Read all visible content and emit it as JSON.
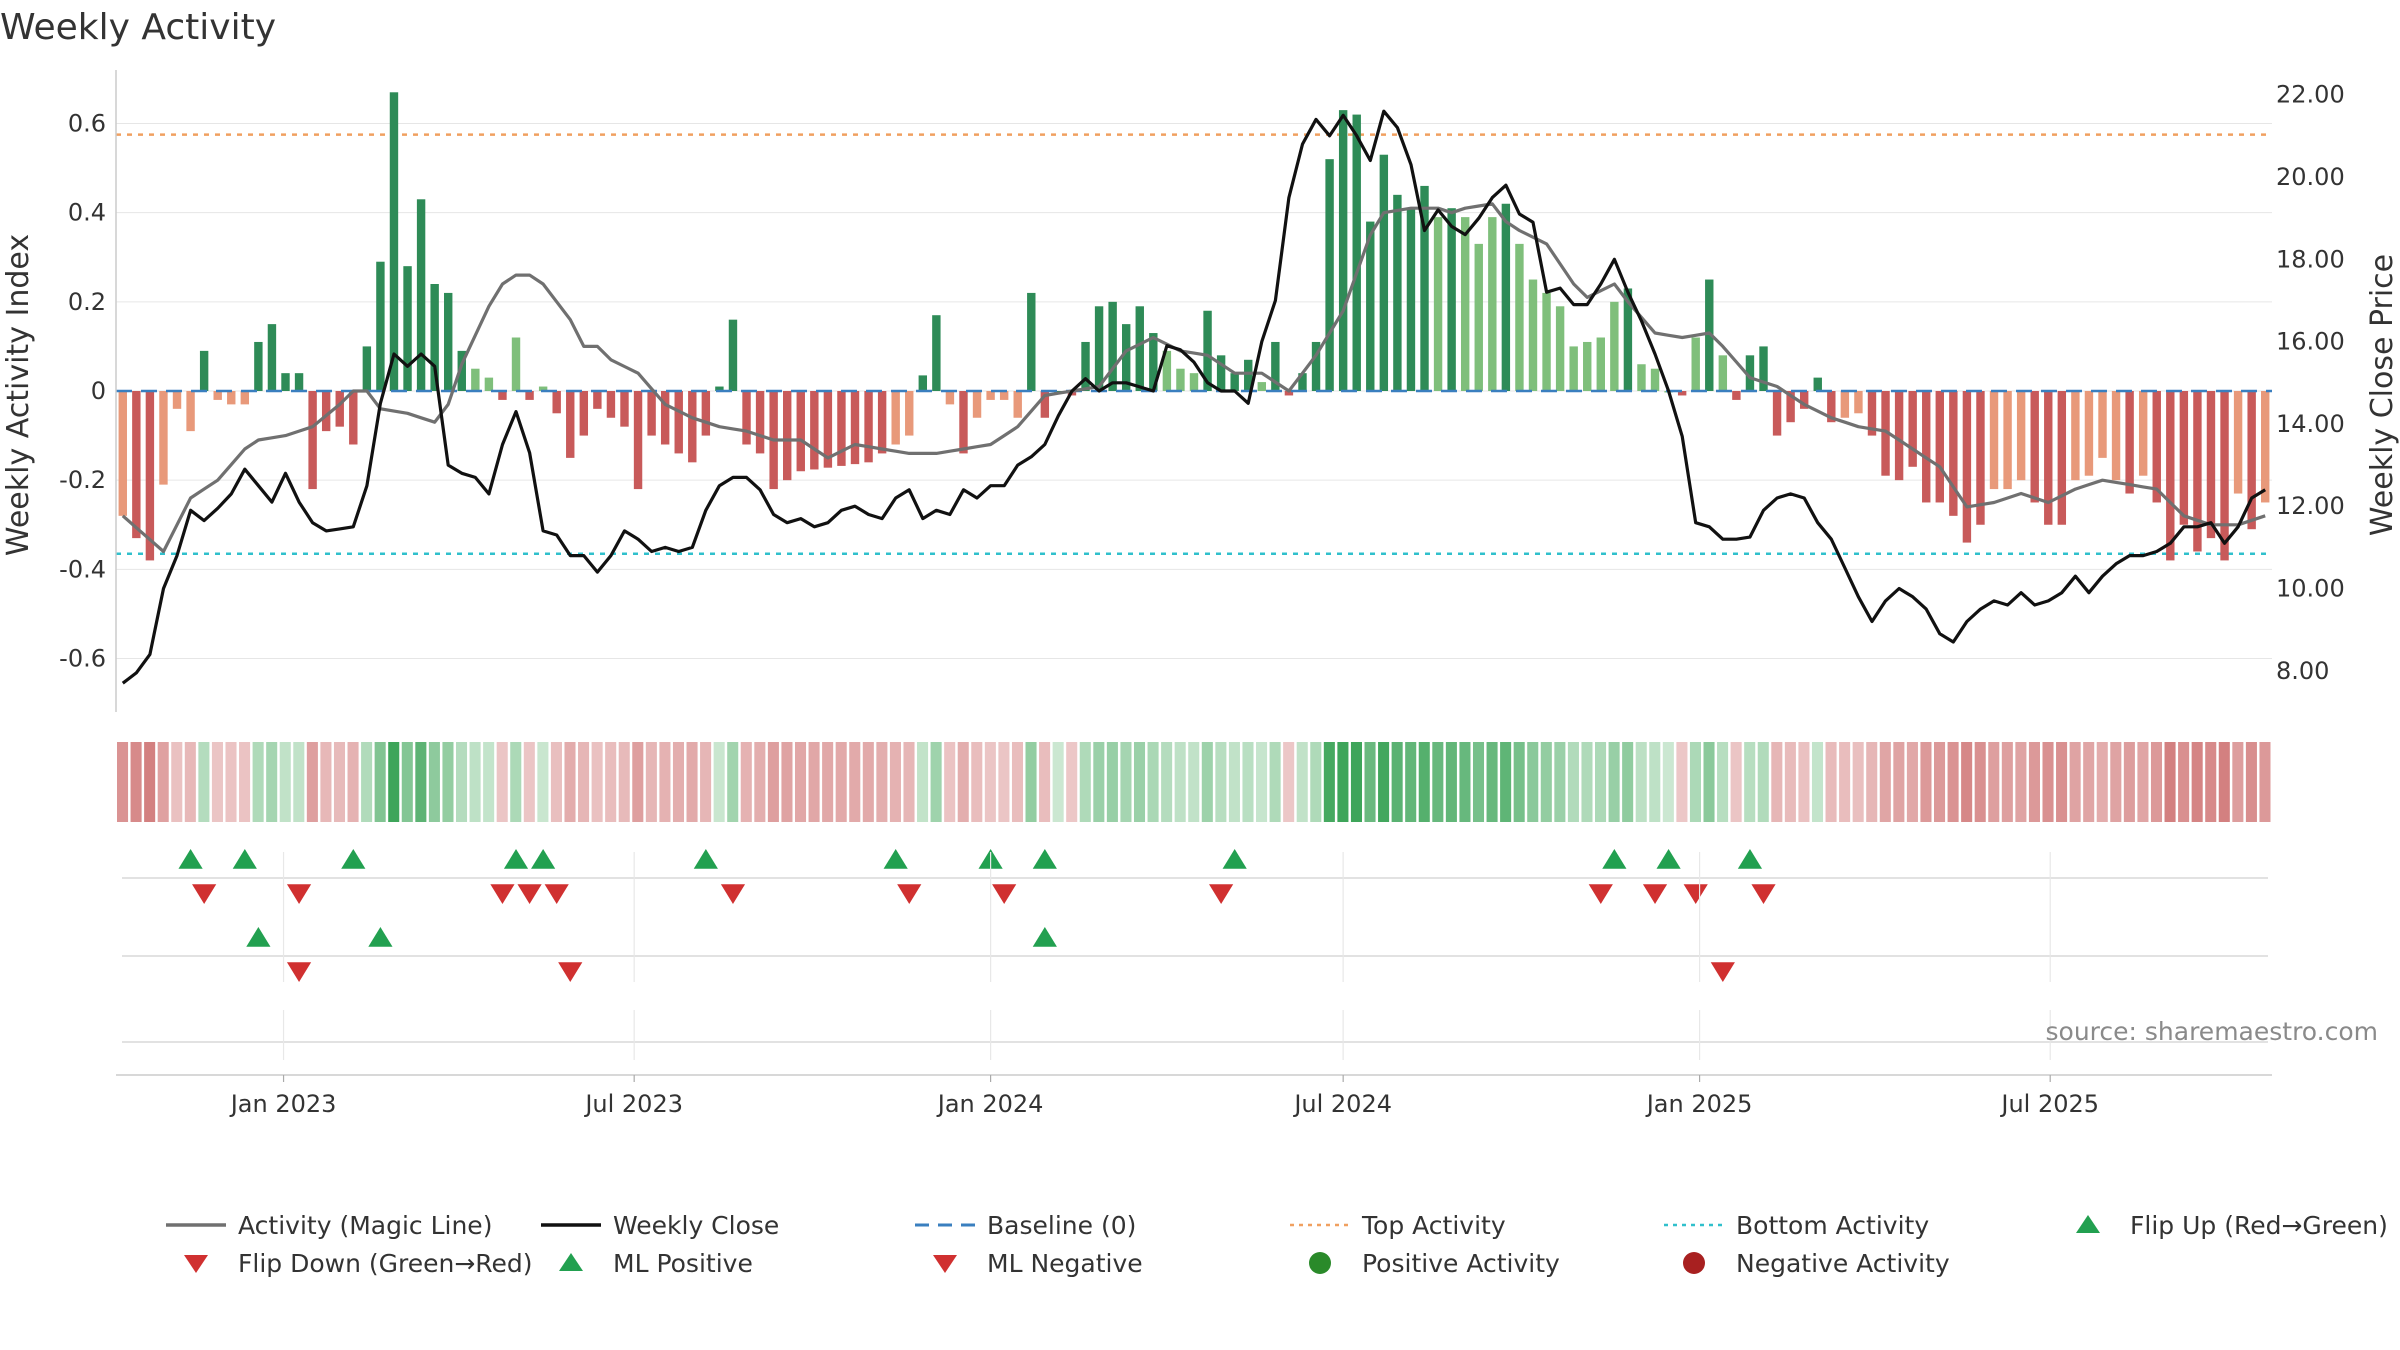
{
  "chart_data": {
    "type": "bar",
    "title": "Weekly Activity",
    "ylabel": "Weekly Activity Index",
    "ylabel_right": "Weekly Close Price",
    "ylim": [
      -0.72,
      0.72
    ],
    "ylim_right": [
      7.0,
      22.6
    ],
    "yticks": [
      "-0.6",
      "-0.4",
      "-0.2",
      "0",
      "0.2",
      "0.4",
      "0.6"
    ],
    "yticks_right": [
      "8.00",
      "10.00",
      "12.00",
      "14.00",
      "16.00",
      "18.00",
      "20.00",
      "22.00"
    ],
    "xticks": [
      "Jan 2023",
      "Jul 2023",
      "Jan 2024",
      "Jul 2024",
      "Jan 2025",
      "Jul 2025"
    ],
    "x_start": "2022-10-10",
    "top_activity": 0.575,
    "bottom_activity": -0.365,
    "weeks_count": 159,
    "activity_anchors": [
      [
        0,
        -0.28
      ],
      [
        2,
        -0.38
      ],
      [
        4,
        -0.04
      ],
      [
        5,
        -0.09
      ],
      [
        6,
        0.09
      ],
      [
        7,
        -0.02
      ],
      [
        8,
        -0.03
      ],
      [
        9,
        -0.03
      ],
      [
        10,
        0.11
      ],
      [
        11,
        0.15
      ],
      [
        12,
        0.04
      ],
      [
        13,
        0.04
      ],
      [
        14,
        -0.22
      ],
      [
        15,
        -0.09
      ],
      [
        16,
        -0.08
      ],
      [
        17,
        -0.12
      ],
      [
        18,
        0.1
      ],
      [
        19,
        0.29
      ],
      [
        20,
        0.67
      ],
      [
        21,
        0.28
      ],
      [
        22,
        0.43
      ],
      [
        23,
        0.24
      ],
      [
        24,
        0.22
      ],
      [
        25,
        0.09
      ],
      [
        26,
        0.05
      ],
      [
        27,
        0.03
      ],
      [
        28,
        -0.02
      ],
      [
        29,
        0.12
      ],
      [
        30,
        -0.02
      ],
      [
        31,
        0.01
      ],
      [
        32,
        -0.05
      ],
      [
        33,
        -0.15
      ],
      [
        34,
        -0.1
      ],
      [
        35,
        -0.04
      ],
      [
        36,
        -0.06
      ],
      [
        37,
        -0.08
      ],
      [
        38,
        -0.22
      ],
      [
        39,
        -0.1
      ],
      [
        40,
        -0.12
      ],
      [
        41,
        -0.14
      ],
      [
        42,
        -0.16
      ],
      [
        43,
        -0.1
      ],
      [
        44,
        0.01
      ],
      [
        45,
        0.16
      ],
      [
        46,
        -0.12
      ],
      [
        47,
        -0.14
      ],
      [
        48,
        -0.22
      ],
      [
        49,
        -0.2
      ],
      [
        50,
        -0.18
      ],
      [
        55,
        -0.16
      ],
      [
        58,
        -0.1
      ],
      [
        60,
        0.17
      ],
      [
        61,
        -0.03
      ],
      [
        62,
        -0.14
      ],
      [
        63,
        -0.06
      ],
      [
        64,
        -0.02
      ],
      [
        65,
        -0.02
      ],
      [
        66,
        -0.06
      ],
      [
        67,
        0.22
      ],
      [
        68,
        -0.06
      ],
      [
        69,
        0.0
      ],
      [
        70,
        -0.01
      ],
      [
        71,
        0.11
      ],
      [
        72,
        0.19
      ],
      [
        73,
        0.2
      ],
      [
        74,
        0.15
      ],
      [
        75,
        0.19
      ],
      [
        76,
        0.13
      ],
      [
        77,
        0.09
      ],
      [
        78,
        0.05
      ],
      [
        79,
        0.04
      ],
      [
        80,
        0.18
      ],
      [
        81,
        0.08
      ],
      [
        82,
        0.04
      ],
      [
        83,
        0.07
      ],
      [
        84,
        0.02
      ],
      [
        85,
        0.11
      ],
      [
        86,
        -0.01
      ],
      [
        87,
        0.04
      ],
      [
        88,
        0.11
      ],
      [
        89,
        0.52
      ],
      [
        90,
        0.63
      ],
      [
        91,
        0.62
      ],
      [
        92,
        0.38
      ],
      [
        93,
        0.53
      ],
      [
        94,
        0.44
      ],
      [
        95,
        0.41
      ],
      [
        96,
        0.46
      ],
      [
        97,
        0.39
      ],
      [
        98,
        0.41
      ],
      [
        99,
        0.39
      ],
      [
        100,
        0.33
      ],
      [
        101,
        0.39
      ],
      [
        102,
        0.42
      ],
      [
        103,
        0.33
      ],
      [
        104,
        0.25
      ],
      [
        105,
        0.22
      ],
      [
        106,
        0.19
      ],
      [
        107,
        0.1
      ],
      [
        108,
        0.11
      ],
      [
        109,
        0.12
      ],
      [
        110,
        0.2
      ],
      [
        111,
        0.23
      ],
      [
        112,
        0.06
      ],
      [
        113,
        0.05
      ],
      [
        114,
        0.0
      ],
      [
        115,
        -0.01
      ],
      [
        116,
        0.12
      ],
      [
        117,
        0.25
      ],
      [
        118,
        0.08
      ],
      [
        119,
        -0.02
      ],
      [
        120,
        0.08
      ],
      [
        121,
        0.1
      ],
      [
        122,
        -0.1
      ],
      [
        124,
        -0.04
      ],
      [
        125,
        0.03
      ],
      [
        126,
        -0.07
      ],
      [
        128,
        -0.05
      ],
      [
        129,
        -0.1
      ],
      [
        130,
        -0.19
      ],
      [
        131,
        -0.2
      ],
      [
        132,
        -0.17
      ],
      [
        133,
        -0.25
      ],
      [
        134,
        -0.25
      ],
      [
        135,
        -0.28
      ],
      [
        136,
        -0.34
      ],
      [
        137,
        -0.3
      ],
      [
        138,
        -0.22
      ],
      [
        139,
        -0.22
      ],
      [
        140,
        -0.2
      ],
      [
        141,
        -0.25
      ],
      [
        142,
        -0.3
      ],
      [
        143,
        -0.3
      ],
      [
        144,
        -0.2
      ],
      [
        145,
        -0.19
      ],
      [
        146,
        -0.15
      ],
      [
        147,
        -0.2
      ],
      [
        148,
        -0.23
      ],
      [
        149,
        -0.19
      ],
      [
        150,
        -0.25
      ],
      [
        151,
        -0.38
      ],
      [
        152,
        -0.3
      ],
      [
        153,
        -0.36
      ],
      [
        154,
        -0.33
      ],
      [
        155,
        -0.38
      ],
      [
        156,
        -0.23
      ],
      [
        157,
        -0.31
      ],
      [
        158,
        -0.25
      ]
    ],
    "magic_anchors": [
      [
        0,
        -0.28
      ],
      [
        3,
        -0.36
      ],
      [
        5,
        -0.24
      ],
      [
        7,
        -0.2
      ],
      [
        9,
        -0.13
      ],
      [
        10,
        -0.11
      ],
      [
        12,
        -0.1
      ],
      [
        14,
        -0.08
      ],
      [
        16,
        -0.03
      ],
      [
        17,
        0.0
      ],
      [
        18,
        0.0
      ],
      [
        19,
        -0.04
      ],
      [
        21,
        -0.05
      ],
      [
        22,
        -0.06
      ],
      [
        23,
        -0.07
      ],
      [
        24,
        -0.03
      ],
      [
        25,
        0.06
      ],
      [
        27,
        0.19
      ],
      [
        28,
        0.24
      ],
      [
        29,
        0.26
      ],
      [
        30,
        0.26
      ],
      [
        31,
        0.24
      ],
      [
        33,
        0.16
      ],
      [
        34,
        0.1
      ],
      [
        35,
        0.1
      ],
      [
        36,
        0.07
      ],
      [
        38,
        0.04
      ],
      [
        40,
        -0.03
      ],
      [
        42,
        -0.06
      ],
      [
        44,
        -0.08
      ],
      [
        46,
        -0.09
      ],
      [
        48,
        -0.11
      ],
      [
        50,
        -0.11
      ],
      [
        52,
        -0.15
      ],
      [
        54,
        -0.12
      ],
      [
        56,
        -0.13
      ],
      [
        58,
        -0.14
      ],
      [
        60,
        -0.14
      ],
      [
        62,
        -0.13
      ],
      [
        64,
        -0.12
      ],
      [
        66,
        -0.08
      ],
      [
        68,
        -0.01
      ],
      [
        70,
        0.0
      ],
      [
        72,
        0.01
      ],
      [
        74,
        0.09
      ],
      [
        76,
        0.12
      ],
      [
        78,
        0.09
      ],
      [
        80,
        0.08
      ],
      [
        82,
        0.04
      ],
      [
        84,
        0.04
      ],
      [
        86,
        0.0
      ],
      [
        88,
        0.08
      ],
      [
        90,
        0.18
      ],
      [
        92,
        0.35
      ],
      [
        93,
        0.4
      ],
      [
        95,
        0.41
      ],
      [
        97,
        0.41
      ],
      [
        98,
        0.4
      ],
      [
        99,
        0.41
      ],
      [
        101,
        0.42
      ],
      [
        102,
        0.38
      ],
      [
        103,
        0.36
      ],
      [
        105,
        0.33
      ],
      [
        107,
        0.24
      ],
      [
        108,
        0.21
      ],
      [
        110,
        0.24
      ],
      [
        111,
        0.2
      ],
      [
        113,
        0.13
      ],
      [
        115,
        0.12
      ],
      [
        117,
        0.13
      ],
      [
        118,
        0.1
      ],
      [
        120,
        0.03
      ],
      [
        122,
        0.01
      ],
      [
        124,
        -0.03
      ],
      [
        126,
        -0.06
      ],
      [
        128,
        -0.08
      ],
      [
        130,
        -0.09
      ],
      [
        132,
        -0.13
      ],
      [
        134,
        -0.17
      ],
      [
        136,
        -0.26
      ],
      [
        138,
        -0.25
      ],
      [
        140,
        -0.23
      ],
      [
        142,
        -0.25
      ],
      [
        144,
        -0.22
      ],
      [
        146,
        -0.2
      ],
      [
        148,
        -0.21
      ],
      [
        150,
        -0.22
      ],
      [
        152,
        -0.28
      ],
      [
        154,
        -0.3
      ],
      [
        156,
        -0.3
      ],
      [
        158,
        -0.28
      ]
    ],
    "close_anchors": [
      [
        0,
        7.7
      ],
      [
        1,
        7.95
      ],
      [
        2,
        8.4
      ],
      [
        3,
        10.0
      ],
      [
        4,
        10.8
      ],
      [
        5,
        11.9
      ],
      [
        6,
        11.65
      ],
      [
        7,
        11.95
      ],
      [
        8,
        12.3
      ],
      [
        9,
        12.9
      ],
      [
        10,
        12.5
      ],
      [
        11,
        12.1
      ],
      [
        12,
        12.8
      ],
      [
        13,
        12.1
      ],
      [
        14,
        11.6
      ],
      [
        15,
        11.4
      ],
      [
        16,
        11.45
      ],
      [
        17,
        11.5
      ],
      [
        18,
        12.5
      ],
      [
        19,
        14.5
      ],
      [
        20,
        15.7
      ],
      [
        21,
        15.4
      ],
      [
        22,
        15.7
      ],
      [
        23,
        15.4
      ],
      [
        24,
        13.0
      ],
      [
        25,
        12.8
      ],
      [
        26,
        12.7
      ],
      [
        27,
        12.3
      ],
      [
        28,
        13.5
      ],
      [
        29,
        14.3
      ],
      [
        30,
        13.3
      ],
      [
        31,
        11.4
      ],
      [
        32,
        11.3
      ],
      [
        33,
        10.8
      ],
      [
        34,
        10.8
      ],
      [
        35,
        10.4
      ],
      [
        36,
        10.8
      ],
      [
        37,
        11.4
      ],
      [
        38,
        11.2
      ],
      [
        39,
        10.9
      ],
      [
        40,
        11.0
      ],
      [
        41,
        10.9
      ],
      [
        42,
        11.0
      ],
      [
        43,
        11.9
      ],
      [
        44,
        12.5
      ],
      [
        45,
        12.7
      ],
      [
        46,
        12.7
      ],
      [
        47,
        12.4
      ],
      [
        48,
        11.8
      ],
      [
        49,
        11.6
      ],
      [
        50,
        11.7
      ],
      [
        51,
        11.5
      ],
      [
        52,
        11.6
      ],
      [
        53,
        11.9
      ],
      [
        54,
        12.0
      ],
      [
        55,
        11.8
      ],
      [
        56,
        11.7
      ],
      [
        57,
        12.2
      ],
      [
        58,
        12.4
      ],
      [
        59,
        11.7
      ],
      [
        60,
        11.9
      ],
      [
        61,
        11.8
      ],
      [
        62,
        12.4
      ],
      [
        63,
        12.2
      ],
      [
        64,
        12.5
      ],
      [
        65,
        12.5
      ],
      [
        66,
        13.0
      ],
      [
        67,
        13.2
      ],
      [
        68,
        13.5
      ],
      [
        69,
        14.2
      ],
      [
        70,
        14.8
      ],
      [
        71,
        15.1
      ],
      [
        72,
        14.8
      ],
      [
        73,
        15.0
      ],
      [
        74,
        15.0
      ],
      [
        75,
        14.9
      ],
      [
        76,
        14.8
      ],
      [
        77,
        15.9
      ],
      [
        78,
        15.8
      ],
      [
        79,
        15.5
      ],
      [
        80,
        15.0
      ],
      [
        81,
        14.8
      ],
      [
        82,
        14.8
      ],
      [
        83,
        14.5
      ],
      [
        84,
        16.0
      ],
      [
        85,
        17.0
      ],
      [
        86,
        19.5
      ],
      [
        87,
        20.8
      ],
      [
        88,
        21.4
      ],
      [
        89,
        21.0
      ],
      [
        90,
        21.5
      ],
      [
        91,
        21.0
      ],
      [
        92,
        20.4
      ],
      [
        93,
        21.6
      ],
      [
        94,
        21.2
      ],
      [
        95,
        20.3
      ],
      [
        96,
        18.7
      ],
      [
        97,
        19.2
      ],
      [
        98,
        18.8
      ],
      [
        99,
        18.6
      ],
      [
        100,
        19.0
      ],
      [
        101,
        19.5
      ],
      [
        102,
        19.8
      ],
      [
        103,
        19.1
      ],
      [
        104,
        18.9
      ],
      [
        105,
        17.2
      ],
      [
        106,
        17.3
      ],
      [
        107,
        16.9
      ],
      [
        108,
        16.9
      ],
      [
        109,
        17.4
      ],
      [
        110,
        18.0
      ],
      [
        111,
        17.2
      ],
      [
        112,
        16.5
      ],
      [
        113,
        15.7
      ],
      [
        114,
        14.8
      ],
      [
        115,
        13.7
      ],
      [
        116,
        11.6
      ],
      [
        117,
        11.5
      ],
      [
        118,
        11.2
      ],
      [
        119,
        11.2
      ],
      [
        120,
        11.25
      ],
      [
        121,
        11.9
      ],
      [
        122,
        12.2
      ],
      [
        123,
        12.3
      ],
      [
        124,
        12.2
      ],
      [
        125,
        11.6
      ],
      [
        126,
        11.2
      ],
      [
        127,
        10.5
      ],
      [
        128,
        9.8
      ],
      [
        129,
        9.2
      ],
      [
        130,
        9.7
      ],
      [
        131,
        10.0
      ],
      [
        132,
        9.8
      ],
      [
        133,
        9.5
      ],
      [
        134,
        8.9
      ],
      [
        135,
        8.7
      ],
      [
        136,
        9.2
      ],
      [
        137,
        9.5
      ],
      [
        138,
        9.7
      ],
      [
        139,
        9.6
      ],
      [
        140,
        9.9
      ],
      [
        141,
        9.6
      ],
      [
        142,
        9.7
      ],
      [
        143,
        9.9
      ],
      [
        144,
        10.3
      ],
      [
        145,
        9.9
      ],
      [
        146,
        10.3
      ],
      [
        147,
        10.6
      ],
      [
        148,
        10.8
      ],
      [
        149,
        10.8
      ],
      [
        150,
        10.9
      ],
      [
        151,
        11.1
      ],
      [
        152,
        11.5
      ],
      [
        153,
        11.5
      ],
      [
        154,
        11.6
      ],
      [
        155,
        11.1
      ],
      [
        156,
        11.5
      ],
      [
        157,
        12.2
      ],
      [
        158,
        12.4
      ]
    ],
    "flip_up_weeks": [
      5,
      9,
      17,
      29,
      31,
      43,
      57,
      64,
      68,
      82,
      110,
      114,
      120
    ],
    "flip_down_weeks": [
      6,
      13,
      28,
      30,
      32,
      45,
      58,
      65,
      81,
      109,
      113,
      116,
      121
    ],
    "ml_positive_weeks": [
      10,
      19,
      68
    ],
    "ml_negative_weeks": [
      13,
      33,
      118
    ],
    "colors": {
      "pos_strong": "#2e8b57",
      "pos_light": "#7fbf7b",
      "neg_strong": "#c85a5a",
      "neg_light": "#e8997a",
      "magic_line": "#707070",
      "close_line": "#111111",
      "baseline": "#3a7fbf",
      "top_activity": "#f0a060",
      "bottom_activity": "#30c0cc",
      "flip_up": "#22a050",
      "flip_down": "#d03030",
      "positive_activity": "#2a8a2a",
      "negative_activity": "#a82020",
      "gridline": "#e6e6e6",
      "axis_line": "#cccccc"
    }
  },
  "legend": [
    {
      "label": "Activity (Magic Line)",
      "kind": "solid-line",
      "color": "#707070"
    },
    {
      "label": "Weekly Close",
      "kind": "solid-line",
      "color": "#111111"
    },
    {
      "label": "Baseline (0)",
      "kind": "dash-line",
      "color": "#3a7fbf"
    },
    {
      "label": "Top Activity",
      "kind": "dot-line",
      "color": "#f0a060"
    },
    {
      "label": "Bottom Activity",
      "kind": "dot-line",
      "color": "#30c0cc"
    },
    {
      "label": "Flip Up (Red→Green)",
      "kind": "triangle-up",
      "color": "#22a050"
    },
    {
      "label": "Flip Down (Green→Red)",
      "kind": "triangle-down",
      "color": "#d03030"
    },
    {
      "label": "ML Positive",
      "kind": "triangle-up",
      "color": "#22a050"
    },
    {
      "label": "ML Negative",
      "kind": "triangle-down",
      "color": "#d03030"
    },
    {
      "label": "Positive Activity",
      "kind": "circle",
      "color": "#2a8a2a"
    },
    {
      "label": "Negative Activity",
      "kind": "circle",
      "color": "#a82020"
    }
  ],
  "source": "source: sharemaestro.com"
}
